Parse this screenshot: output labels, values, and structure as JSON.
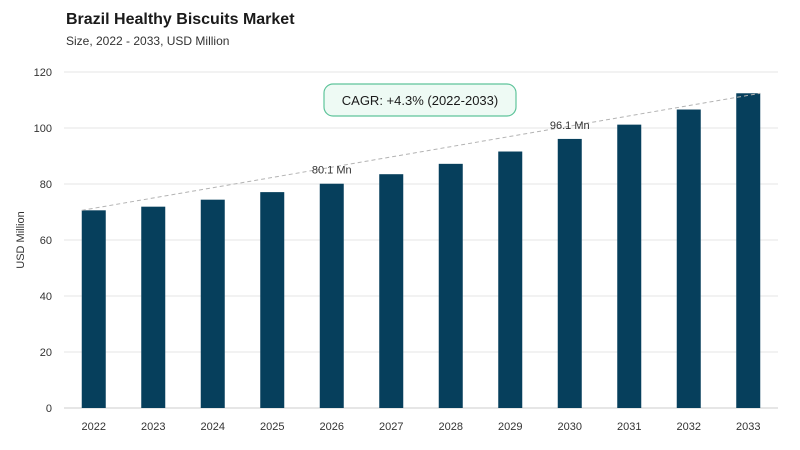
{
  "chart_data": {
    "type": "bar",
    "title": "Brazil Healthy Biscuits Market",
    "subtitle": "Size, 2022 - 2033, USD Million",
    "ylabel": "USD Million",
    "xlabel": "",
    "ylim": [
      0,
      120
    ],
    "yticks": [
      0,
      20,
      40,
      60,
      80,
      100,
      120
    ],
    "grid": true,
    "categories": [
      "2022",
      "2023",
      "2024",
      "2025",
      "2026",
      "2027",
      "2028",
      "2029",
      "2030",
      "2031",
      "2032",
      "2033"
    ],
    "values": [
      70.6,
      71.9,
      74.4,
      77.1,
      80.1,
      83.5,
      87.2,
      91.6,
      96.1,
      101.2,
      106.6,
      112.4
    ],
    "data_labels": [
      {
        "category": "2026",
        "text": "80.1 Mn"
      },
      {
        "category": "2030",
        "text": "96.1 Mn"
      }
    ],
    "annotation": "CAGR: +4.3% (2022-2033)",
    "colors": {
      "bar": "#063f5c",
      "grid": "#e6e6e6",
      "trend": "#b3b3b3",
      "cagr_border": "#5fc49b",
      "cagr_fill": "#eefaf4"
    }
  }
}
